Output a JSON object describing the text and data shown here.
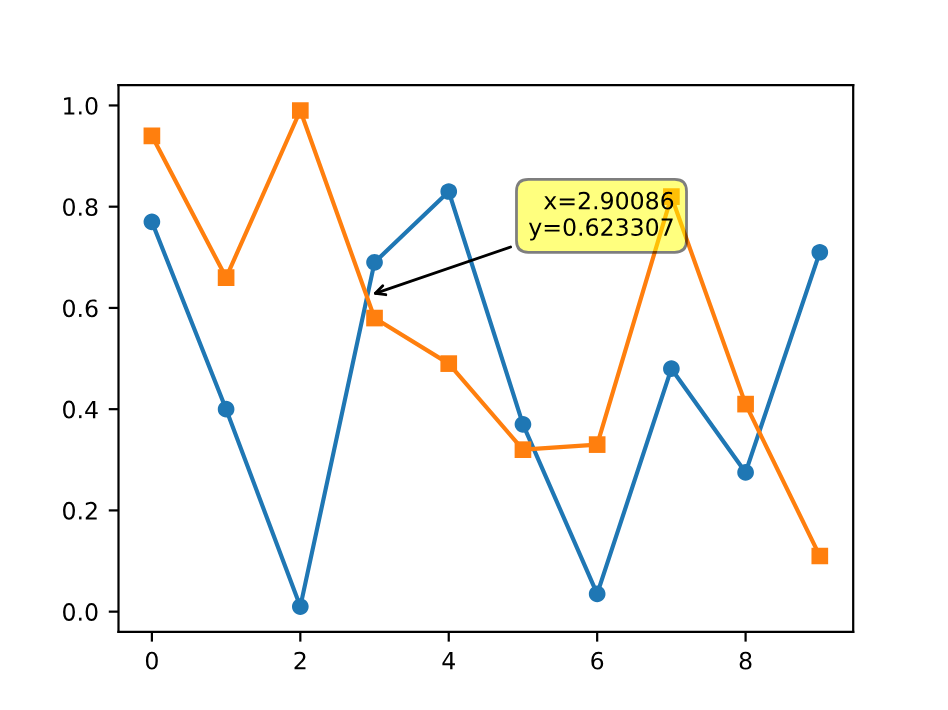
{
  "chart_data": {
    "type": "line",
    "x": [
      0,
      1,
      2,
      3,
      4,
      5,
      6,
      7,
      8,
      9
    ],
    "series": [
      {
        "color": "#1f77b4",
        "marker": "circle",
        "values": [
          0.77,
          0.4,
          0.01,
          0.69,
          0.83,
          0.37,
          0.035,
          0.48,
          0.275,
          0.71
        ]
      },
      {
        "color": "#ff7f0e",
        "marker": "square",
        "values": [
          0.94,
          0.66,
          0.99,
          0.58,
          0.49,
          0.32,
          0.33,
          0.82,
          0.41,
          0.11
        ]
      }
    ],
    "xlim": [
      -0.45,
      9.45
    ],
    "ylim": [
      -0.04,
      1.04
    ],
    "xticks": [
      0,
      2,
      4,
      6,
      8
    ],
    "yticks": [
      {
        "value": 0,
        "label": "0.0"
      },
      {
        "value": 0.2,
        "label": "0.2"
      },
      {
        "value": 0.4,
        "label": "0.4"
      },
      {
        "value": 0.6,
        "label": "0.6"
      },
      {
        "value": 0.8,
        "label": "0.8"
      },
      {
        "value": 1.0,
        "label": "1.0"
      }
    ],
    "grid": false,
    "annotations": [
      {
        "text": "x=2.90086\ny=0.623307",
        "x": 2.90086,
        "y": 0.623307
      }
    ]
  }
}
